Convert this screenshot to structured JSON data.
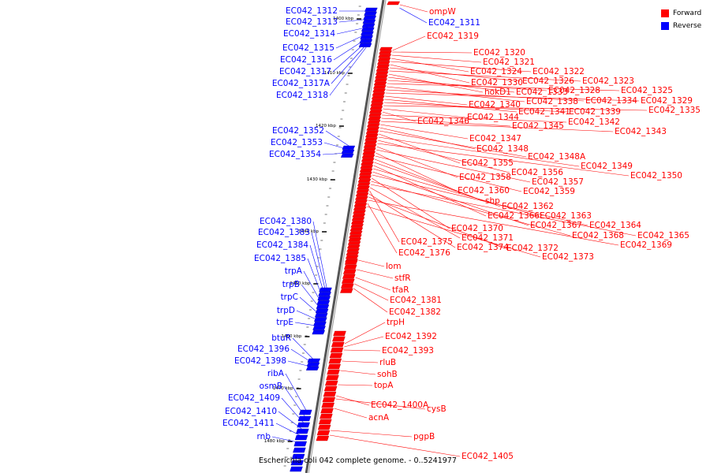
{
  "legend": {
    "items": [
      {
        "label": "Forward",
        "color": "#ff0000"
      },
      {
        "label": "Reverse",
        "color": "#0000ff"
      }
    ]
  },
  "footer": {
    "caption": "Escherichia coli 042 complete genome. - 0..5241977"
  },
  "colors": {
    "forward": "#ff0000",
    "reverse": "#0000ff",
    "backbone": "#999999",
    "tick": "#000000"
  },
  "scale": {
    "ticks": [
      "1400 kbp",
      "1410 kbp",
      "1420 kbp",
      "1430 kbp",
      "1440 kbp",
      "1450 kbp",
      "1460 kbp",
      "1470 kbp",
      "1480 kbp"
    ]
  },
  "genes": {
    "forward": [
      "ompW",
      "EC042_1319",
      "EC042_1320",
      "EC042_1321",
      "EC042_1324",
      "EC042_1322",
      "EC042_1330",
      "EC042_1326",
      "EC042_1323",
      "hokD1",
      "EC042_1333",
      "EC042_1328",
      "EC042_1325",
      "EC042_1338",
      "EC042_1334",
      "EC042_1329",
      "EC042_1340",
      "EC042_1341",
      "EC042_1339",
      "EC042_1335",
      "EC042_1344",
      "EC042_1346",
      "EC042_1342",
      "EC042_1345",
      "EC042_1343",
      "EC042_1347",
      "EC042_1348",
      "EC042_1348A",
      "EC042_1355",
      "EC042_1349",
      "EC042_1356",
      "EC042_1350",
      "EC042_1358",
      "EC042_1357",
      "EC042_1360",
      "EC042_1359",
      "shp",
      "EC042_1362",
      "EC042_1366",
      "EC042_1363",
      "EC042_1367",
      "EC042_1364",
      "EC042_1370",
      "EC042_1368",
      "EC042_1365",
      "EC042_1371",
      "EC042_1375",
      "EC042_1374",
      "EC042_1372",
      "EC042_1369",
      "EC042_1376",
      "EC042_1373",
      "lom",
      "stfR",
      "tfaR",
      "EC042_1381",
      "EC042_1382",
      "trpH",
      "EC042_1392",
      "EC042_1393",
      "rluB",
      "sohB",
      "topA",
      "EC042_1400A",
      "cysB",
      "acnA",
      "pgpB",
      "EC042_1405"
    ],
    "reverse": [
      "EC042_1312",
      "EC042_1311",
      "EC042_1313",
      "EC042_1314",
      "EC042_1315",
      "EC042_1316",
      "EC042_1317",
      "EC042_1317A",
      "EC042_1318",
      "EC042_1352",
      "EC042_1353",
      "EC042_1354",
      "EC042_1380",
      "EC042_1383",
      "EC042_1384",
      "EC042_1385",
      "trpA",
      "trpB",
      "trpC",
      "trpD",
      "trpE",
      "btuR",
      "EC042_1396",
      "EC042_1398",
      "ribA",
      "osmB",
      "EC042_1409",
      "EC042_1410",
      "EC042_1411",
      "rnb"
    ]
  }
}
